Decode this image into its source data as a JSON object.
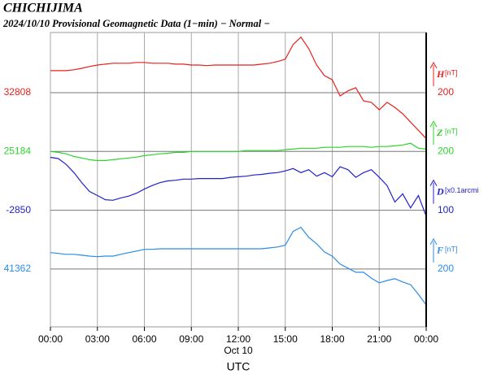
{
  "chart_data": {
    "type": "line",
    "title": "CHICHIJIMA",
    "subtitle": "2024/10/10  Provisional Geomagnetic Data (1−min)  − Normal −",
    "xlabel": "UTC",
    "date_label": "Oct 10",
    "xlim": [
      0,
      24
    ],
    "xticks": [
      {
        "value": 0,
        "label": "00:00"
      },
      {
        "value": 3,
        "label": "03:00"
      },
      {
        "value": 6,
        "label": "06:00"
      },
      {
        "value": 9,
        "label": "09:00"
      },
      {
        "value": 12,
        "label": "12:00"
      },
      {
        "value": 15,
        "label": "15:00"
      },
      {
        "value": 18,
        "label": "18:00"
      },
      {
        "value": 21,
        "label": "21:00"
      },
      {
        "value": 24,
        "label": "00:00"
      }
    ],
    "grid": true,
    "x": [
      0,
      0.5,
      1,
      1.5,
      2,
      2.5,
      3,
      3.5,
      4,
      4.5,
      5,
      5.5,
      6,
      6.5,
      7,
      7.5,
      8,
      8.5,
      9,
      9.5,
      10,
      10.5,
      11,
      11.5,
      12,
      12.5,
      13,
      13.5,
      14,
      14.5,
      15,
      15.5,
      16,
      16.5,
      17,
      17.5,
      18,
      18.5,
      19,
      19.5,
      20,
      20.5,
      21,
      21.5,
      22,
      22.5,
      23,
      23.5,
      24
    ],
    "series": [
      {
        "name": "H",
        "unit": "[nT]",
        "color": "#e8211c",
        "baseline": 32808,
        "scale": 200,
        "values": [
          32883,
          32883,
          32883,
          32886,
          32891,
          32897,
          32902,
          32905,
          32908,
          32908,
          32908,
          32911,
          32911,
          32908,
          32908,
          32908,
          32905,
          32905,
          32902,
          32902,
          32900,
          32902,
          32902,
          32902,
          32902,
          32902,
          32902,
          32905,
          32908,
          32914,
          32922,
          32972,
          32997,
          32958,
          32902,
          32866,
          32852,
          32797,
          32814,
          32825,
          32780,
          32775,
          32750,
          32775,
          32758,
          32736,
          32708,
          32680,
          32652
        ]
      },
      {
        "name": "Z",
        "unit": "[nT]",
        "color": "#2bd42b",
        "baseline": 25184,
        "scale": 200,
        "values": [
          25184,
          25181,
          25176,
          25167,
          25162,
          25156,
          25153,
          25153,
          25156,
          25159,
          25162,
          25165,
          25170,
          25173,
          25176,
          25178,
          25181,
          25181,
          25184,
          25184,
          25184,
          25184,
          25184,
          25184,
          25184,
          25187,
          25187,
          25187,
          25187,
          25187,
          25190,
          25192,
          25195,
          25195,
          25195,
          25198,
          25198,
          25198,
          25201,
          25201,
          25201,
          25198,
          25201,
          25201,
          25203,
          25206,
          25212,
          25195,
          25192
        ]
      },
      {
        "name": "D",
        "unit": "[x0.1arcmi",
        "color": "#2222cc",
        "baseline": -2850,
        "scale": 100,
        "values": [
          -2760,
          -2762,
          -2772,
          -2786,
          -2803,
          -2818,
          -2825,
          -2832,
          -2833,
          -2829,
          -2826,
          -2821,
          -2814,
          -2808,
          -2803,
          -2800,
          -2799,
          -2797,
          -2797,
          -2796,
          -2796,
          -2796,
          -2796,
          -2794,
          -2793,
          -2792,
          -2790,
          -2789,
          -2787,
          -2786,
          -2783,
          -2779,
          -2786,
          -2781,
          -2792,
          -2786,
          -2793,
          -2776,
          -2781,
          -2794,
          -2786,
          -2781,
          -2794,
          -2808,
          -2836,
          -2822,
          -2846,
          -2825,
          -2860
        ]
      },
      {
        "name": "F",
        "unit": "[nT]",
        "color": "#2a8ce8",
        "baseline": 41362,
        "scale": 200,
        "values": [
          41418,
          41415,
          41412,
          41412,
          41409,
          41406,
          41404,
          41406,
          41406,
          41412,
          41418,
          41423,
          41429,
          41429,
          41431,
          41431,
          41431,
          41431,
          41431,
          41431,
          41431,
          41431,
          41431,
          41431,
          41431,
          41431,
          41431,
          41431,
          41434,
          41437,
          41443,
          41490,
          41504,
          41470,
          41448,
          41420,
          41406,
          41379,
          41365,
          41351,
          41351,
          41331,
          41315,
          41323,
          41329,
          41318,
          41309,
          41276,
          41240
        ]
      }
    ]
  }
}
